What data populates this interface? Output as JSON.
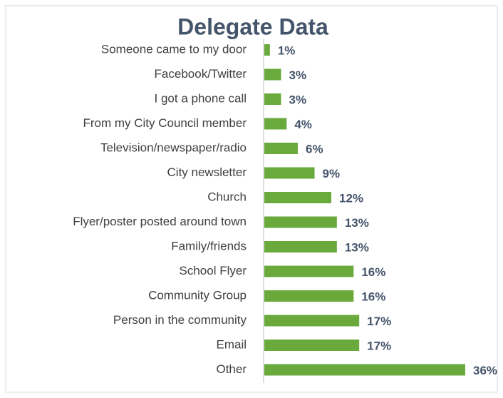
{
  "chart_data": {
    "type": "bar",
    "orientation": "horizontal",
    "title": "Delegate Data",
    "categories": [
      "Someone came to my door",
      "Facebook/Twitter",
      "I got a phone call",
      "From my City Council member",
      "Television/newspaper/radio",
      "City newsletter",
      "Church",
      "Flyer/poster posted around town",
      "Family/friends",
      "School Flyer",
      "Community Group",
      "Person in the community",
      "Email",
      "Other"
    ],
    "values": [
      1,
      3,
      3,
      4,
      6,
      9,
      12,
      13,
      13,
      16,
      16,
      17,
      17,
      36
    ],
    "value_labels": [
      "1%",
      "3%",
      "3%",
      "4%",
      "6%",
      "9%",
      "12%",
      "13%",
      "13%",
      "16%",
      "16%",
      "17%",
      "17%",
      "36%"
    ],
    "color": "#6aaa3c"
  }
}
